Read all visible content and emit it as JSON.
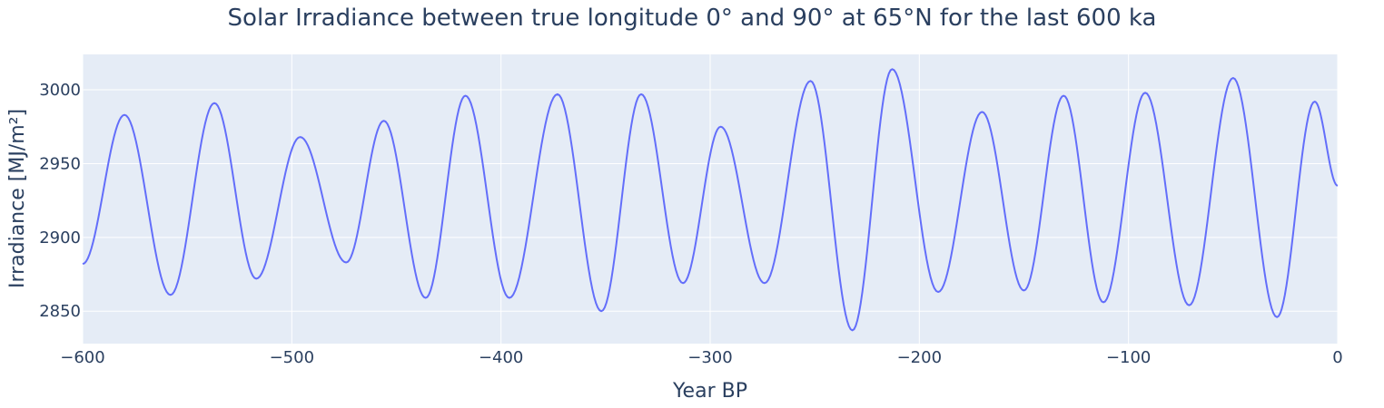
{
  "chart_data": {
    "type": "line",
    "title": "Solar Irradiance between true longitude 0° and 90° at 65°N for the last 600 ka",
    "xlabel": "Year BP",
    "ylabel": "Irradiance [MJ/m²]",
    "xlim": [
      -600,
      0
    ],
    "ylim": [
      2828,
      3024
    ],
    "xticks": [
      -600,
      -500,
      -400,
      -300,
      -200,
      -100,
      0
    ],
    "xtick_labels": [
      "−600",
      "−500",
      "−400",
      "−300",
      "−200",
      "−100",
      "0"
    ],
    "yticks": [
      2850,
      2900,
      2950,
      3000
    ],
    "ytick_labels": [
      "2850",
      "2900",
      "2950",
      "3000"
    ],
    "grid": true,
    "legend": "none",
    "colors": {
      "plot_bg": "#e5ecf6",
      "grid": "#ffffff",
      "line": "#636efa",
      "text": "#2a3f5f"
    },
    "series": [
      {
        "points": [
          [
            -600,
            2882
          ],
          [
            -580,
            2983
          ],
          [
            -558,
            2861
          ],
          [
            -537,
            2991
          ],
          [
            -517,
            2872
          ],
          [
            -496,
            2968
          ],
          [
            -474,
            2883
          ],
          [
            -456,
            2979
          ],
          [
            -436,
            2859
          ],
          [
            -417,
            2996
          ],
          [
            -396,
            2859
          ],
          [
            -373,
            2997
          ],
          [
            -352,
            2850
          ],
          [
            -333,
            2997
          ],
          [
            -313,
            2869
          ],
          [
            -295,
            2975
          ],
          [
            -274,
            2869
          ],
          [
            -252,
            3006
          ],
          [
            -232,
            2837
          ],
          [
            -213,
            3014
          ],
          [
            -191,
            2863
          ],
          [
            -170,
            2985
          ],
          [
            -150,
            2864
          ],
          [
            -131,
            2996
          ],
          [
            -112,
            2856
          ],
          [
            -92,
            2998
          ],
          [
            -71,
            2854
          ],
          [
            -50,
            3008
          ],
          [
            -29,
            2846
          ],
          [
            -11,
            2992
          ],
          [
            0,
            2935
          ]
        ]
      }
    ]
  }
}
